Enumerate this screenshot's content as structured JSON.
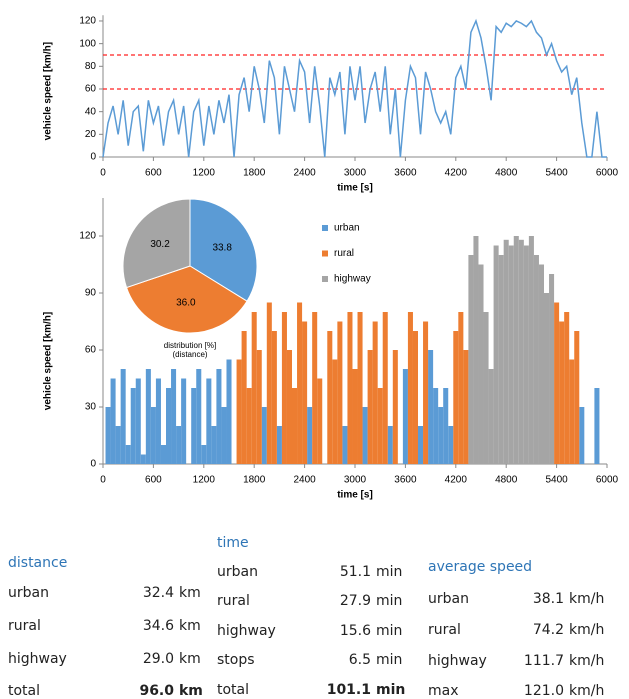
{
  "chart_data": [
    {
      "type": "line",
      "ylabel": "vehicle speed [km/h]",
      "xlabel": "time [s]",
      "xlim": [
        0,
        6000
      ],
      "xticks": [
        0,
        600,
        1200,
        1800,
        2400,
        3000,
        3600,
        4200,
        4800,
        5400,
        6000
      ],
      "ylim": [
        0,
        125
      ],
      "yticks": [
        0,
        20,
        40,
        60,
        80,
        100,
        120
      ],
      "reference_lines": [
        {
          "value": 60,
          "color": "#ff2020"
        },
        {
          "value": 90,
          "color": "#ff2020"
        }
      ],
      "series": [
        {
          "color": "#5b9bd5",
          "x": [
            0,
            60,
            120,
            180,
            240,
            300,
            360,
            420,
            480,
            540,
            600,
            660,
            720,
            780,
            840,
            900,
            960,
            1020,
            1080,
            1140,
            1200,
            1260,
            1320,
            1380,
            1440,
            1500,
            1560,
            1620,
            1680,
            1740,
            1800,
            1860,
            1920,
            1980,
            2040,
            2100,
            2160,
            2220,
            2280,
            2340,
            2400,
            2460,
            2520,
            2580,
            2640,
            2700,
            2760,
            2820,
            2880,
            2940,
            3000,
            3060,
            3120,
            3180,
            3240,
            3300,
            3360,
            3420,
            3480,
            3540,
            3600,
            3660,
            3720,
            3780,
            3840,
            3900,
            3960,
            4020,
            4080,
            4140,
            4200,
            4260,
            4320,
            4380,
            4440,
            4500,
            4560,
            4620,
            4680,
            4740,
            4800,
            4860,
            4920,
            4980,
            5040,
            5100,
            5160,
            5220,
            5280,
            5340,
            5400,
            5460,
            5520,
            5580,
            5640,
            5700,
            5760,
            5820,
            5880,
            5940,
            6000
          ],
          "values": [
            0,
            30,
            45,
            20,
            50,
            10,
            40,
            45,
            5,
            50,
            30,
            45,
            10,
            40,
            50,
            20,
            45,
            0,
            40,
            50,
            10,
            45,
            20,
            50,
            30,
            55,
            0,
            55,
            70,
            40,
            80,
            60,
            30,
            85,
            70,
            20,
            80,
            60,
            40,
            85,
            75,
            30,
            80,
            45,
            0,
            70,
            55,
            75,
            20,
            80,
            50,
            80,
            30,
            60,
            75,
            40,
            80,
            20,
            60,
            0,
            50,
            80,
            70,
            20,
            75,
            60,
            40,
            30,
            40,
            20,
            70,
            80,
            60,
            110,
            120,
            105,
            80,
            50,
            115,
            110,
            118,
            115,
            120,
            118,
            115,
            120,
            110,
            105,
            90,
            100,
            85,
            75,
            80,
            55,
            70,
            30,
            0,
            0,
            40,
            0,
            0
          ]
        }
      ]
    },
    {
      "type": "bar",
      "ylabel": "vehicle speed [km/h]",
      "xlabel": "time [s]",
      "xlim": [
        0,
        6000
      ],
      "xticks": [
        0,
        600,
        1200,
        1800,
        2400,
        3000,
        3600,
        4200,
        4800,
        5400,
        6000
      ],
      "ylim": [
        0,
        140
      ],
      "yticks": [
        0,
        30,
        60,
        90,
        120
      ],
      "series": [
        {
          "name": "urban",
          "color": "#5b9bd5",
          "x": [
            0,
            60,
            120,
            180,
            240,
            300,
            360,
            420,
            480,
            540,
            600,
            660,
            720,
            780,
            840,
            900,
            960,
            1020,
            1080,
            1140,
            1200,
            1260,
            1320,
            1380,
            1440,
            1500,
            1560,
            1920,
            2100,
            2460,
            2640,
            2880,
            3120,
            3420,
            3540,
            3600,
            3780,
            3900,
            3960,
            4020,
            4080,
            4140,
            5700,
            5760,
            5820,
            5880,
            5940,
            6000
          ],
          "values": [
            0,
            30,
            45,
            20,
            50,
            10,
            40,
            45,
            5,
            50,
            30,
            45,
            10,
            40,
            50,
            20,
            45,
            0,
            40,
            50,
            10,
            45,
            20,
            50,
            30,
            55,
            0,
            30,
            20,
            30,
            0,
            20,
            30,
            20,
            0,
            50,
            20,
            60,
            40,
            30,
            40,
            20,
            30,
            0,
            0,
            40,
            0,
            0
          ]
        },
        {
          "name": "rural",
          "color": "#ed7d31",
          "x": [
            1620,
            1680,
            1740,
            1800,
            1860,
            1980,
            2040,
            2160,
            2220,
            2280,
            2340,
            2400,
            2520,
            2580,
            2700,
            2760,
            2820,
            2940,
            3000,
            3060,
            3180,
            3240,
            3300,
            3360,
            3480,
            3660,
            3720,
            3840,
            4200,
            4260,
            4320,
            5400,
            5460,
            5520,
            5580,
            5640
          ],
          "values": [
            55,
            70,
            40,
            80,
            60,
            85,
            70,
            80,
            60,
            40,
            85,
            75,
            80,
            45,
            70,
            55,
            75,
            80,
            50,
            80,
            60,
            75,
            40,
            80,
            60,
            80,
            70,
            75,
            70,
            80,
            60,
            85,
            75,
            80,
            55,
            70
          ]
        },
        {
          "name": "highway",
          "color": "#a5a5a5",
          "x": [
            4380,
            4440,
            4500,
            4560,
            4620,
            4680,
            4740,
            4800,
            4860,
            4920,
            4980,
            5040,
            5100,
            5160,
            5220,
            5280,
            5340
          ],
          "values": [
            110,
            120,
            105,
            80,
            50,
            115,
            110,
            118,
            115,
            120,
            118,
            115,
            120,
            110,
            105,
            90,
            100
          ]
        }
      ]
    },
    {
      "type": "pie",
      "label": "distribution [%]",
      "sublabel": "(distance)",
      "values": [
        33.8,
        36.0,
        30.2
      ],
      "value_labels": [
        "33.8",
        "36.0",
        "30.2"
      ],
      "colors": [
        "#5b9bd5",
        "#ed7d31",
        "#a5a5a5"
      ]
    }
  ],
  "stats": {
    "distance": {
      "title": "distance",
      "rows": [
        [
          "urban",
          "32.4",
          "km"
        ],
        [
          "rural",
          "34.6",
          "km"
        ],
        [
          "highway",
          "29.0",
          "km"
        ],
        [
          "total",
          "96.0",
          "km"
        ]
      ]
    },
    "time": {
      "title": "time",
      "rows": [
        [
          "urban",
          "51.1",
          "min"
        ],
        [
          "rural",
          "27.9",
          "min"
        ],
        [
          "highway",
          "15.6",
          "min"
        ],
        [
          "stops",
          "6.5",
          "min"
        ],
        [
          "total",
          "101.1",
          "min"
        ]
      ]
    },
    "average_speed": {
      "title": "average speed",
      "rows": [
        [
          "urban",
          "38.1",
          "km/h"
        ],
        [
          "rural",
          "74.2",
          "km/h"
        ],
        [
          "highway",
          "111.7",
          "km/h"
        ],
        [
          "max",
          "121.0",
          "km/h"
        ]
      ]
    }
  }
}
